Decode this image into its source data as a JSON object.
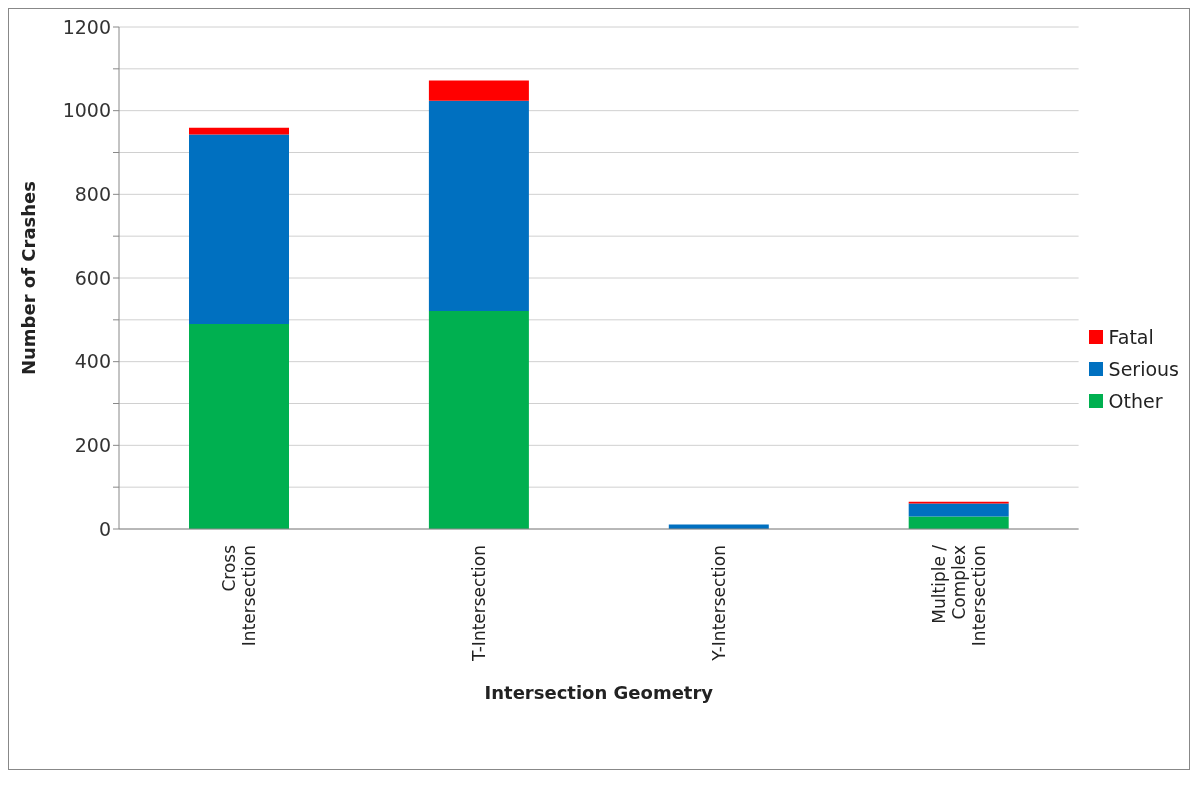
{
  "chart_data": {
    "type": "bar",
    "stacked": true,
    "xlabel": "Intersection Geometry",
    "ylabel": "Number of Crashes",
    "categories": [
      "Cross\nIntersection",
      "T-Intersection",
      "Y-Intersection",
      "Multiple /\nComplex\nIntersection"
    ],
    "series": [
      {
        "name": "Other",
        "color": "#00b050",
        "values": [
          490,
          521,
          0,
          30
        ]
      },
      {
        "name": "Serious",
        "color": "#0070c0",
        "values": [
          453,
          503,
          11,
          31
        ]
      },
      {
        "name": "Fatal",
        "color": "#ff0000",
        "values": [
          16,
          48,
          0,
          4
        ]
      }
    ],
    "ylim": [
      0,
      1200
    ],
    "yticks": [
      0,
      {
        "value": 100,
        "label": null
      },
      200,
      {
        "value": 300,
        "label": null
      },
      400,
      {
        "value": 500,
        "label": null
      },
      600,
      {
        "value": 700,
        "label": null
      },
      800,
      {
        "value": 900,
        "label": null
      },
      1000,
      {
        "value": 1100,
        "label": null
      },
      1200
    ],
    "grid": "y",
    "legend": "right"
  }
}
